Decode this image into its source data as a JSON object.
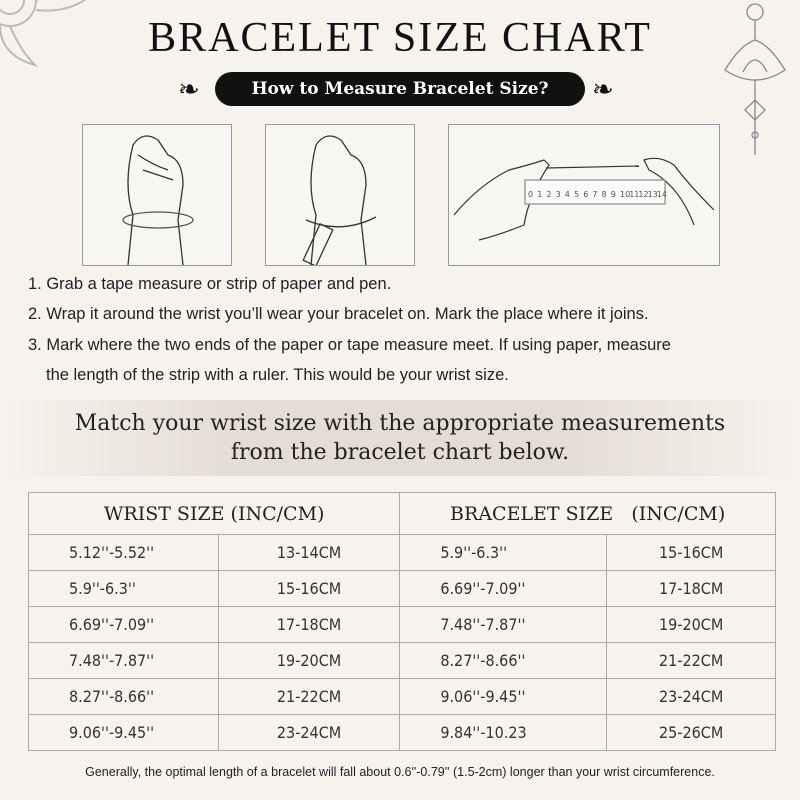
{
  "title": "BRACELET SIZE CHART",
  "subtitle": "How to Measure Bracelet Size?",
  "ruler": {
    "labels": [
      "0",
      "1",
      "2",
      "3",
      "4",
      "5",
      "6",
      "7",
      "8",
      "9",
      "10",
      "11",
      "12",
      "13",
      "14"
    ]
  },
  "steps": [
    "1. Grab a tape measure or strip of paper and pen.",
    "2. Wrap it around the wrist you’ll wear your bracelet on. Mark the place where it joins.",
    "3. Mark where the two ends of the paper or tape measure meet. If using paper, measure",
    "the length of the strip with a ruler. This would be your wrist size."
  ],
  "match_text": {
    "line1": "Match your wrist size with the appropriate measurements",
    "line2": "from the bracelet chart below."
  },
  "table": {
    "headers": [
      "WRIST SIZE (INC/CM)",
      "BRACELET SIZE   (INC/CM)"
    ],
    "rows": [
      [
        "5.12''-5.52''",
        "13-14CM",
        "5.9''-6.3''",
        "15-16CM"
      ],
      [
        "5.9''-6.3''",
        "15-16CM",
        "6.69''-7.09''",
        "17-18CM"
      ],
      [
        "6.69''-7.09''",
        "17-18CM",
        "7.48''-7.87''",
        "19-20CM"
      ],
      [
        "7.48''-7.87''",
        "19-20CM",
        "8.27''-8.66''",
        "21-22CM"
      ],
      [
        "8.27''-8.66''",
        "21-22CM",
        "9.06''-9.45''",
        "23-24CM"
      ],
      [
        "9.06''-9.45''",
        "23-24CM",
        "9.84''-10.23",
        "25-26CM"
      ]
    ]
  },
  "footnote": "Generally, the optimal length of a bracelet will fall about 0.6''-0.79'' (1.5-2cm) longer than your wrist circumference."
}
